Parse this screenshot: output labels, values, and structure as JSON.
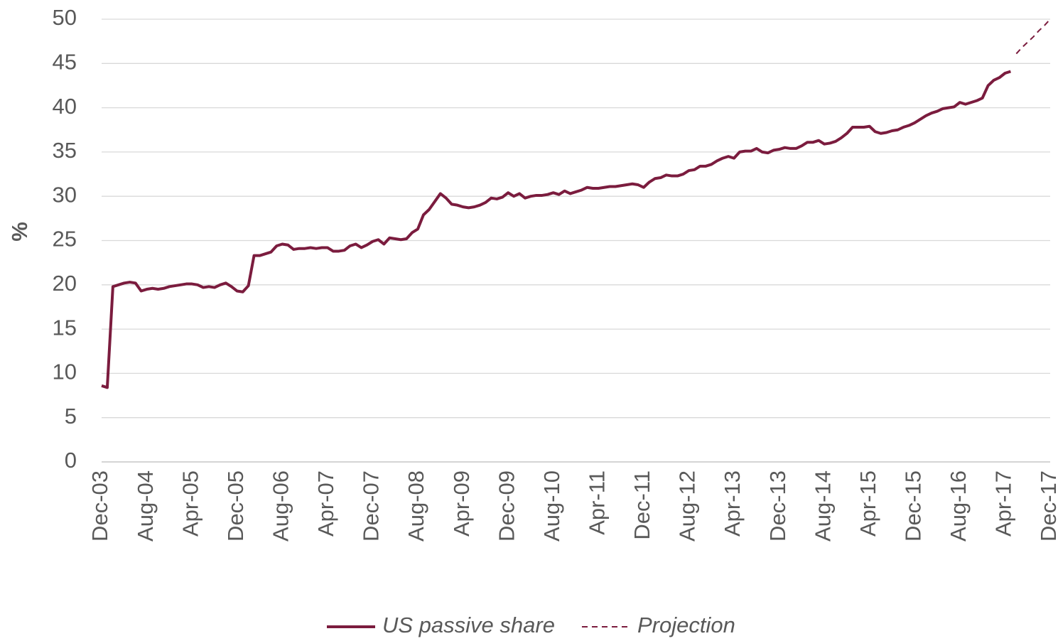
{
  "chart_data": {
    "type": "line",
    "ylabel": "%",
    "categories": [
      "Dec-03",
      null,
      null,
      null,
      null,
      null,
      null,
      null,
      "Aug-04",
      null,
      null,
      null,
      null,
      null,
      null,
      null,
      "Apr-05",
      null,
      null,
      null,
      null,
      null,
      null,
      null,
      "Dec-05",
      null,
      null,
      null,
      null,
      null,
      null,
      null,
      "Aug-06",
      null,
      null,
      null,
      null,
      null,
      null,
      null,
      "Apr-07",
      null,
      null,
      null,
      null,
      null,
      null,
      null,
      "Dec-07",
      null,
      null,
      null,
      null,
      null,
      null,
      null,
      "Aug-08",
      null,
      null,
      null,
      null,
      null,
      null,
      null,
      "Apr-09",
      null,
      null,
      null,
      null,
      null,
      null,
      null,
      "Dec-09",
      null,
      null,
      null,
      null,
      null,
      null,
      null,
      "Aug-10",
      null,
      null,
      null,
      null,
      null,
      null,
      null,
      "Apr-11",
      null,
      null,
      null,
      null,
      null,
      null,
      null,
      "Dec-11",
      null,
      null,
      null,
      null,
      null,
      null,
      null,
      "Aug-12",
      null,
      null,
      null,
      null,
      null,
      null,
      null,
      "Apr-13",
      null,
      null,
      null,
      null,
      null,
      null,
      null,
      "Dec-13",
      null,
      null,
      null,
      null,
      null,
      null,
      null,
      "Aug-14",
      null,
      null,
      null,
      null,
      null,
      null,
      null,
      "Apr-15",
      null,
      null,
      null,
      null,
      null,
      null,
      null,
      "Dec-15",
      null,
      null,
      null,
      null,
      null,
      null,
      null,
      "Aug-16",
      null,
      null,
      null,
      null,
      null,
      null,
      null,
      "Apr-17",
      null,
      null,
      null,
      null,
      null,
      null,
      null,
      "Dec-17"
    ],
    "series": [
      {
        "name": "US passive share",
        "color": "#7b1c3e",
        "line_style": "solid",
        "values": [
          8.6,
          8.4,
          19.8,
          20.0,
          20.2,
          20.3,
          20.2,
          19.3,
          19.5,
          19.6,
          19.5,
          19.6,
          19.8,
          19.9,
          20.0,
          20.1,
          20.1,
          20.0,
          19.7,
          19.8,
          19.7,
          20.0,
          20.2,
          19.8,
          19.3,
          19.2,
          19.9,
          23.3,
          23.3,
          23.5,
          23.7,
          24.4,
          24.6,
          24.5,
          24.0,
          24.1,
          24.1,
          24.2,
          24.1,
          24.2,
          24.2,
          23.8,
          23.8,
          23.9,
          24.4,
          24.6,
          24.2,
          24.5,
          24.9,
          25.1,
          24.6,
          25.3,
          25.2,
          25.1,
          25.2,
          25.9,
          26.3,
          27.9,
          28.5,
          29.4,
          30.3,
          29.8,
          29.1,
          29.0,
          28.8,
          28.7,
          28.8,
          29.0,
          29.3,
          29.8,
          29.7,
          29.9,
          30.4,
          30.0,
          30.3,
          29.8,
          30.0,
          30.1,
          30.1,
          30.2,
          30.4,
          30.2,
          30.6,
          30.3,
          30.5,
          30.7,
          31.0,
          30.9,
          30.9,
          31.0,
          31.1,
          31.1,
          31.2,
          31.3,
          31.4,
          31.3,
          31.0,
          31.6,
          32.0,
          32.1,
          32.4,
          32.3,
          32.3,
          32.5,
          32.9,
          33.0,
          33.4,
          33.4,
          33.6,
          34.0,
          34.3,
          34.5,
          34.3,
          35.0,
          35.1,
          35.1,
          35.4,
          35.0,
          34.9,
          35.2,
          35.3,
          35.5,
          35.4,
          35.4,
          35.7,
          36.1,
          36.1,
          36.3,
          35.9,
          36.0,
          36.2,
          36.6,
          37.1,
          37.8,
          37.8,
          37.8,
          37.9,
          37.3,
          37.1,
          37.2,
          37.4,
          37.5,
          37.8,
          38.0,
          38.3,
          38.7,
          39.1,
          39.4,
          39.6,
          39.9,
          40.0,
          40.1,
          40.6,
          40.4,
          40.6,
          40.8,
          41.1,
          42.5,
          43.1,
          43.4,
          43.9,
          44.1,
          null,
          null,
          null,
          null,
          null,
          null,
          null
        ]
      },
      {
        "name": "Projection",
        "color": "#7b1c3e",
        "line_style": "dashed",
        "values": [
          null,
          null,
          null,
          null,
          null,
          null,
          null,
          null,
          null,
          null,
          null,
          null,
          null,
          null,
          null,
          null,
          null,
          null,
          null,
          null,
          null,
          null,
          null,
          null,
          null,
          null,
          null,
          null,
          null,
          null,
          null,
          null,
          null,
          null,
          null,
          null,
          null,
          null,
          null,
          null,
          null,
          null,
          null,
          null,
          null,
          null,
          null,
          null,
          null,
          null,
          null,
          null,
          null,
          null,
          null,
          null,
          null,
          null,
          null,
          null,
          null,
          null,
          null,
          null,
          null,
          null,
          null,
          null,
          null,
          null,
          null,
          null,
          null,
          null,
          null,
          null,
          null,
          null,
          null,
          null,
          null,
          null,
          null,
          null,
          null,
          null,
          null,
          null,
          null,
          null,
          null,
          null,
          null,
          null,
          null,
          null,
          null,
          null,
          null,
          null,
          null,
          null,
          null,
          null,
          null,
          null,
          null,
          null,
          null,
          null,
          null,
          null,
          null,
          null,
          null,
          null,
          null,
          null,
          null,
          null,
          null,
          null,
          null,
          null,
          null,
          null,
          null,
          null,
          null,
          null,
          null,
          null,
          null,
          null,
          null,
          null,
          null,
          null,
          null,
          null,
          null,
          null,
          null,
          null,
          null,
          null,
          null,
          null,
          null,
          null,
          null,
          null,
          null,
          null,
          null,
          null,
          null,
          null,
          null,
          null,
          null,
          null,
          46.1,
          46.8,
          47.4,
          48.0,
          48.7,
          49.3,
          50.0
        ]
      }
    ],
    "ylim": [
      0,
      50
    ],
    "yticks": [
      0,
      5,
      10,
      15,
      20,
      25,
      30,
      35,
      40,
      45,
      50
    ],
    "grid": true,
    "legend": "bottom"
  }
}
